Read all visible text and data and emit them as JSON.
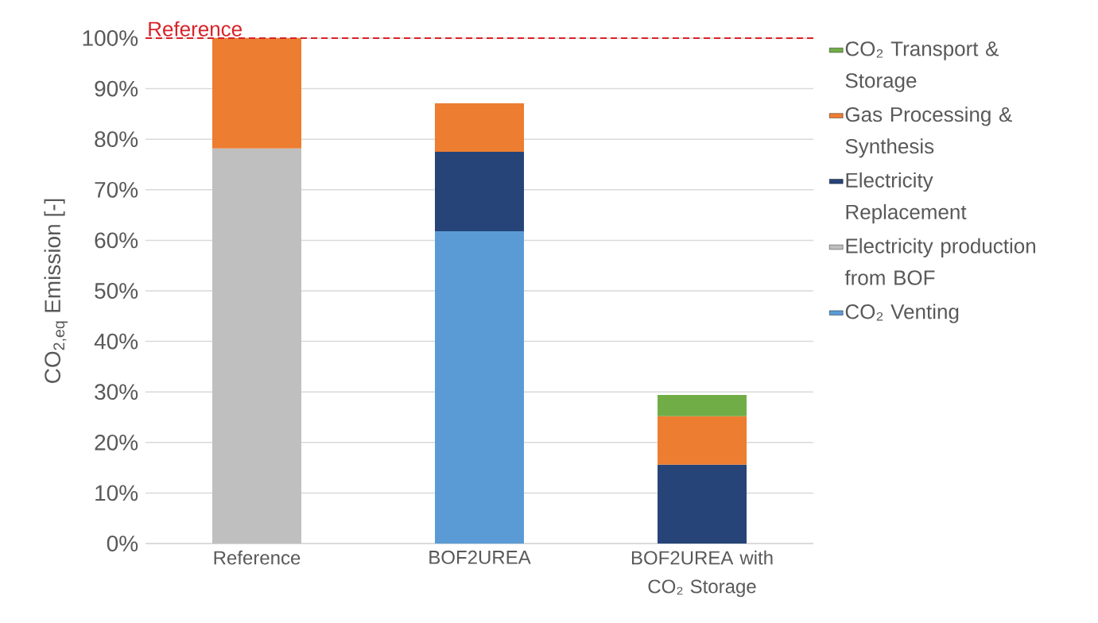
{
  "chart_data": {
    "type": "bar",
    "stacked": true,
    "ylabel": "CO$_{2,eq}$ Emission [-]",
    "categories": [
      "Reference",
      "BOF2UREA",
      "BOF2UREA with CO₂ Storage"
    ],
    "series": [
      {
        "name": "CO₂ Venting",
        "color": "#5b9bd5",
        "values": [
          null,
          61.8,
          null
        ]
      },
      {
        "name": "Electricity production from BOF",
        "color": "#bfbfbf",
        "values": [
          78.2,
          null,
          null
        ]
      },
      {
        "name": "Electricity Replacement",
        "color": "#264478",
        "values": [
          null,
          15.7,
          15.6
        ]
      },
      {
        "name": "Gas Processing & Synthesis",
        "color": "#ed7d31",
        "values": [
          21.8,
          9.6,
          9.6
        ]
      },
      {
        "name": "CO₂ Transport & Storage",
        "color": "#70ad47",
        "values": [
          null,
          null,
          4.2
        ]
      }
    ],
    "ylim": [
      0,
      100
    ],
    "yticks": [
      {
        "value": 0,
        "label": "0%"
      },
      {
        "value": 10,
        "label": "10%"
      },
      {
        "value": 20,
        "label": "20%"
      },
      {
        "value": 30,
        "label": "30%"
      },
      {
        "value": 40,
        "label": "40%"
      },
      {
        "value": 50,
        "label": "50%"
      },
      {
        "value": 60,
        "label": "60%"
      },
      {
        "value": 70,
        "label": "70%"
      },
      {
        "value": 80,
        "label": "80%"
      },
      {
        "value": 90,
        "label": "90%"
      },
      {
        "value": 100,
        "label": "100%"
      }
    ],
    "grid": "y",
    "legend": "right",
    "ref_lines": [
      {
        "axis": "y",
        "value": 100,
        "label": "Reference",
        "color": "#d8232a",
        "line_style": "dashed"
      }
    ]
  }
}
